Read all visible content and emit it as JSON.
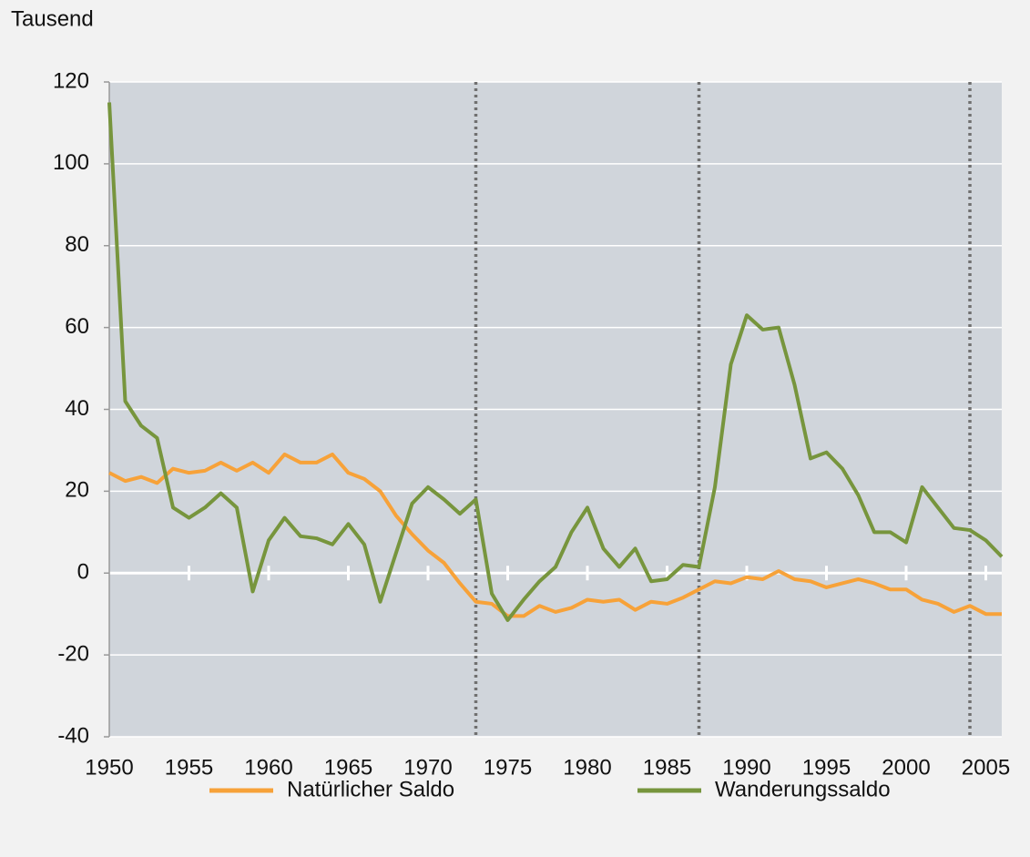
{
  "chart_data": {
    "type": "line",
    "y_axis_label": "Tausend",
    "x": [
      1950,
      1951,
      1952,
      1953,
      1954,
      1955,
      1956,
      1957,
      1958,
      1959,
      1960,
      1961,
      1962,
      1963,
      1964,
      1965,
      1966,
      1967,
      1968,
      1969,
      1970,
      1971,
      1972,
      1973,
      1974,
      1975,
      1976,
      1977,
      1978,
      1979,
      1980,
      1981,
      1982,
      1983,
      1984,
      1985,
      1986,
      1987,
      1988,
      1989,
      1990,
      1991,
      1992,
      1993,
      1994,
      1995,
      1996,
      1997,
      1998,
      1999,
      2000,
      2001,
      2002,
      2003,
      2004,
      2005,
      2006
    ],
    "series": [
      {
        "name": "Natürlicher Saldo",
        "color": "#f7a239",
        "values": [
          24.5,
          22.5,
          23.5,
          22,
          25.5,
          24.5,
          25,
          27,
          25,
          27,
          24.5,
          29,
          27,
          27,
          29,
          24.5,
          23,
          20,
          14,
          9.5,
          5.5,
          2.5,
          -2.5,
          -7,
          -7.5,
          -10.5,
          -10.5,
          -8,
          -9.5,
          -8.5,
          -6.5,
          -7,
          -6.5,
          -9,
          -7,
          -7.5,
          -6,
          -4,
          -2,
          -2.5,
          -1,
          -1.5,
          0.5,
          -1.5,
          -2,
          -3.5,
          -2.5,
          -1.5,
          -2.5,
          -4,
          -4,
          -6.5,
          -7.5,
          -9.5,
          -8,
          -10,
          -10
        ]
      },
      {
        "name": "Wanderungssaldo",
        "color": "#77953d",
        "values": [
          115,
          42,
          36,
          33,
          16,
          13.5,
          16,
          19.5,
          16,
          -4.5,
          8,
          13.5,
          9,
          8.5,
          7,
          12,
          7,
          -7,
          5,
          17,
          21,
          18,
          14.5,
          18,
          -5,
          -11.5,
          -6.5,
          -2,
          1.5,
          10,
          16,
          6,
          1.5,
          6,
          -2,
          -1.5,
          2,
          1.5,
          21,
          51,
          63,
          59.5,
          60,
          46,
          28,
          29.5,
          25.5,
          19,
          10,
          10,
          7.5,
          21,
          16,
          11,
          10.5,
          8,
          4
        ]
      }
    ],
    "xlim": [
      1950,
      2006
    ],
    "xticks": [
      1950,
      1955,
      1960,
      1965,
      1970,
      1975,
      1980,
      1985,
      1990,
      1995,
      2000,
      2005
    ],
    "ylim": [
      -40,
      120
    ],
    "yticks": [
      -40,
      -20,
      0,
      20,
      40,
      60,
      80,
      100,
      120
    ],
    "vlines": [
      1973,
      1987,
      2004
    ],
    "grid": true
  }
}
